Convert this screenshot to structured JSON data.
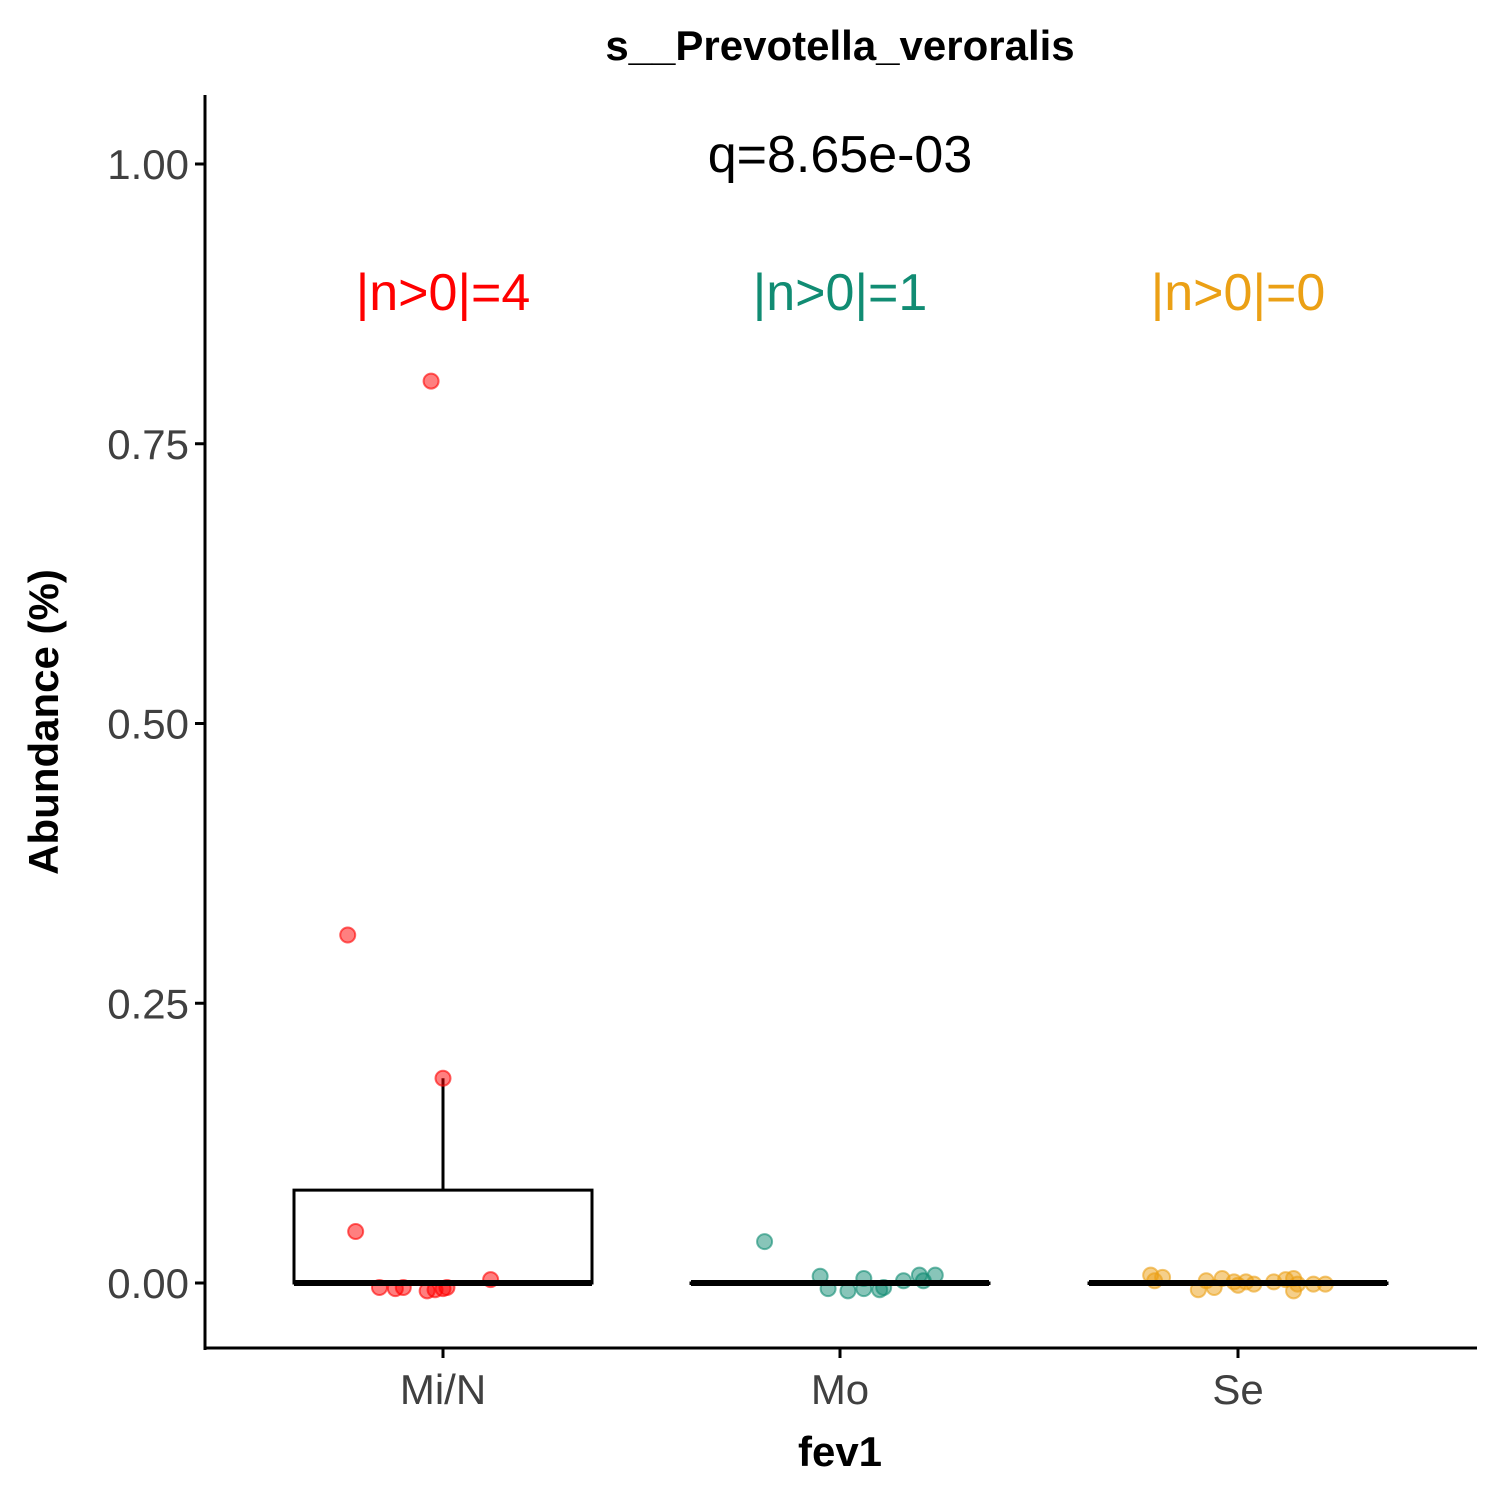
{
  "chart_data": {
    "type": "box",
    "title": "s__Prevotella_veroralis",
    "xlabel": "fev1",
    "ylabel": "Abundance (%)",
    "ylim": [
      -0.12,
      1.06
    ],
    "yticks": [
      0.0,
      0.25,
      0.5,
      0.75,
      1.0
    ],
    "ytick_labels": [
      "0.00",
      "0.25",
      "0.50",
      "0.75",
      "1.00"
    ],
    "categories": [
      "Mi/N",
      "Mo",
      "Se"
    ],
    "colors": {
      "Mi/N": "#ff0000",
      "Mo": "#118c73",
      "Se": "#eba015"
    },
    "q_label": "q=8.65e-03",
    "nonzero_labels": [
      "|n>0|=4",
      "|n>0|=1",
      "|n>0|=0"
    ],
    "grid": false,
    "legend": "none",
    "boxes": [
      {
        "category": "Mi/N",
        "q1": 0.0,
        "median": 0.0,
        "q3": 0.083,
        "whisker_low": 0.0,
        "whisker_high": 0.183
      },
      {
        "category": "Mo",
        "q1": 0.0,
        "median": 0.0,
        "q3": 0.0,
        "whisker_low": 0.0,
        "whisker_high": 0.0
      },
      {
        "category": "Se",
        "q1": 0.0,
        "median": 0.0,
        "q3": 0.0,
        "whisker_low": 0.0,
        "whisker_high": 0.0
      }
    ],
    "points": [
      {
        "category": "Mi/N",
        "x": -0.03,
        "y": 0.806
      },
      {
        "category": "Mi/N",
        "x": -0.24,
        "y": 0.311
      },
      {
        "category": "Mi/N",
        "x": 0.0,
        "y": 0.183
      },
      {
        "category": "Mi/N",
        "x": -0.22,
        "y": 0.046
      },
      {
        "category": "Mi/N",
        "x": 0.12,
        "y": 0.003
      },
      {
        "category": "Mi/N",
        "x": -0.16,
        "y": -0.004
      },
      {
        "category": "Mi/N",
        "x": -0.12,
        "y": -0.005
      },
      {
        "category": "Mi/N",
        "x": -0.1,
        "y": -0.004
      },
      {
        "category": "Mi/N",
        "x": -0.04,
        "y": -0.007
      },
      {
        "category": "Mi/N",
        "x": -0.02,
        "y": -0.006
      },
      {
        "category": "Mi/N",
        "x": 0.0,
        "y": -0.005
      },
      {
        "category": "Mi/N",
        "x": 0.01,
        "y": -0.004
      },
      {
        "category": "Mo",
        "x": -0.19,
        "y": 0.037
      },
      {
        "category": "Mo",
        "x": -0.05,
        "y": 0.006
      },
      {
        "category": "Mo",
        "x": 0.06,
        "y": 0.004
      },
      {
        "category": "Mo",
        "x": 0.2,
        "y": 0.007
      },
      {
        "category": "Mo",
        "x": 0.24,
        "y": 0.007
      },
      {
        "category": "Mo",
        "x": 0.16,
        "y": 0.002
      },
      {
        "category": "Mo",
        "x": 0.21,
        "y": 0.002
      },
      {
        "category": "Mo",
        "x": 0.06,
        "y": -0.005
      },
      {
        "category": "Mo",
        "x": 0.11,
        "y": -0.004
      },
      {
        "category": "Mo",
        "x": 0.02,
        "y": -0.007
      },
      {
        "category": "Mo",
        "x": 0.1,
        "y": -0.006
      },
      {
        "category": "Mo",
        "x": -0.03,
        "y": -0.005
      },
      {
        "category": "Se",
        "x": -0.22,
        "y": 0.007
      },
      {
        "category": "Se",
        "x": -0.19,
        "y": 0.005
      },
      {
        "category": "Se",
        "x": -0.21,
        "y": 0.002
      },
      {
        "category": "Se",
        "x": -0.08,
        "y": 0.002
      },
      {
        "category": "Se",
        "x": -0.04,
        "y": 0.004
      },
      {
        "category": "Se",
        "x": -0.01,
        "y": 0.001
      },
      {
        "category": "Se",
        "x": 0.02,
        "y": 0.001
      },
      {
        "category": "Se",
        "x": 0.04,
        "y": -0.001
      },
      {
        "category": "Se",
        "x": 0.09,
        "y": 0.001
      },
      {
        "category": "Se",
        "x": 0.12,
        "y": 0.003
      },
      {
        "category": "Se",
        "x": 0.14,
        "y": 0.004
      },
      {
        "category": "Se",
        "x": 0.15,
        "y": -0.001
      },
      {
        "category": "Se",
        "x": 0.19,
        "y": -0.001
      },
      {
        "category": "Se",
        "x": 0.22,
        "y": -0.001
      },
      {
        "category": "Se",
        "x": -0.1,
        "y": -0.006
      },
      {
        "category": "Se",
        "x": -0.06,
        "y": -0.004
      },
      {
        "category": "Se",
        "x": 0.14,
        "y": -0.007
      },
      {
        "category": "Se",
        "x": 0.0,
        "y": -0.002
      }
    ]
  }
}
